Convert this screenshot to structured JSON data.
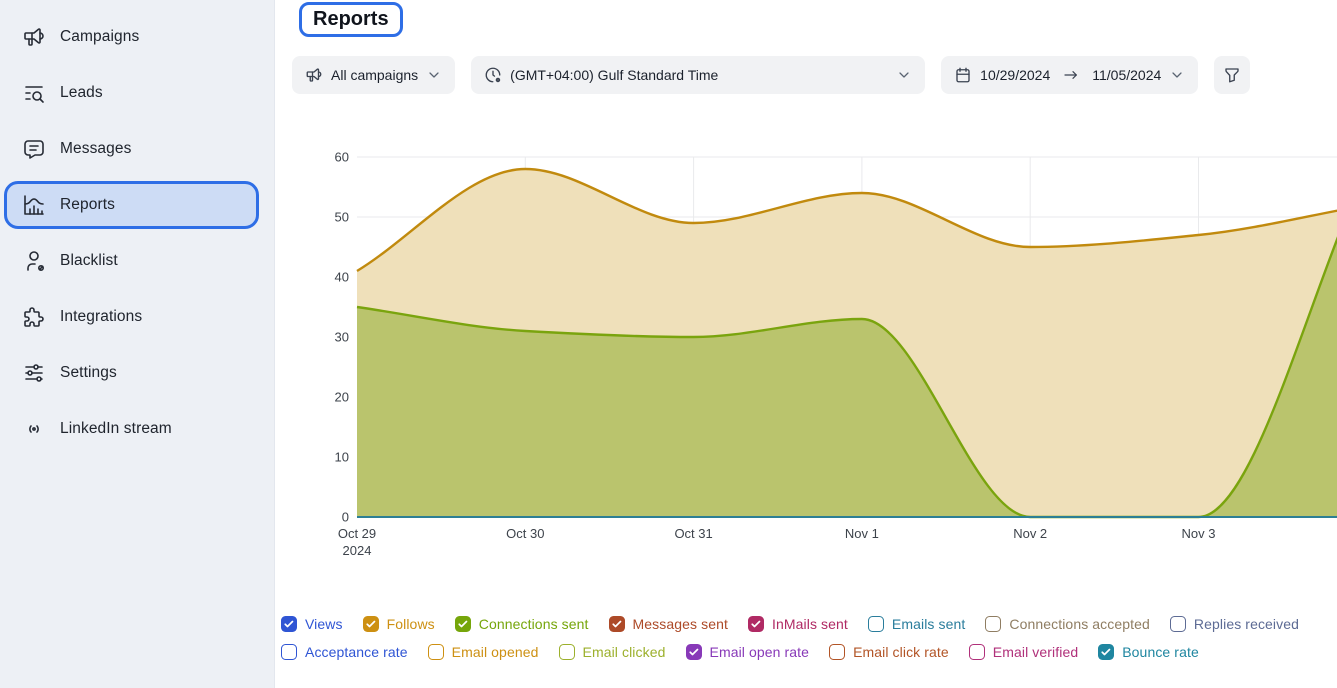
{
  "header": {
    "title": "Reports"
  },
  "sidebar": {
    "selected_color": "#2e6ee6",
    "items": [
      {
        "label": "Campaigns",
        "icon": "megaphone-icon",
        "selected": false
      },
      {
        "label": "Leads",
        "icon": "list-search-icon",
        "selected": false
      },
      {
        "label": "Messages",
        "icon": "message-icon",
        "selected": false
      },
      {
        "label": "Reports",
        "icon": "chart-histogram-icon",
        "selected": true
      },
      {
        "label": "Blacklist",
        "icon": "user-block-icon",
        "selected": false
      },
      {
        "label": "Integrations",
        "icon": "puzzle-icon",
        "selected": false
      },
      {
        "label": "Settings",
        "icon": "adjustments-icon",
        "selected": false
      },
      {
        "label": "LinkedIn stream",
        "icon": "broadcast-icon",
        "selected": false
      }
    ]
  },
  "filters": {
    "campaigns": {
      "value": "All campaigns",
      "icon": "megaphone-icon"
    },
    "timezone": {
      "value": "(GMT+04:00) Gulf Standard Time",
      "icon": "clock-cog-icon"
    },
    "date_range": {
      "start": "10/29/2024",
      "end": "11/05/2024",
      "icon": "calendar-icon"
    },
    "filter_button": {
      "icon": "funnel-icon"
    }
  },
  "chart_data": {
    "type": "area",
    "x_tick_labels": [
      "Oct 29",
      "Oct 30",
      "Oct 31",
      "Nov 1",
      "Nov 2",
      "Nov 3"
    ],
    "x_first_tick_sublabel": "2024",
    "ylim": [
      0,
      60
    ],
    "yticks": [
      0,
      10,
      20,
      30,
      40,
      50,
      60
    ],
    "grid": true,
    "legend_position": "bottom",
    "series": [
      {
        "name": "Follows",
        "stroke": "#c18a0e",
        "fill": "#efe0ba",
        "values": [
          41,
          58,
          49,
          54,
          45,
          47,
          52
        ]
      },
      {
        "name": "Connections sent",
        "stroke": "#7aa40e",
        "fill": "#bac46d",
        "values": [
          35,
          31,
          30,
          33,
          0,
          0,
          58
        ]
      },
      {
        "name": "Zero-value checked series (Views, Messages sent, InMails sent, Email open rate, Bounce rate)",
        "stroke": "#2d7f94",
        "fill": "none",
        "values": [
          0,
          0,
          0,
          0,
          0,
          0,
          0
        ]
      }
    ]
  },
  "legend": {
    "rows": [
      [
        {
          "label": "Views",
          "color": "#2f55d4",
          "checked": true
        },
        {
          "label": "Follows",
          "color": "#cd9012",
          "checked": true
        },
        {
          "label": "Connections sent",
          "color": "#76a60b",
          "checked": true
        },
        {
          "label": "Messages sent",
          "color": "#ad4a28",
          "checked": true
        },
        {
          "label": "InMails sent",
          "color": "#b02a64",
          "checked": true
        },
        {
          "label": "Emails sent",
          "color": "#2a7d9c",
          "checked": false
        },
        {
          "label": "Connections accepted",
          "color": "#8f7d62",
          "checked": false
        },
        {
          "label": "Replies received",
          "color": "#5d6b94",
          "checked": false
        }
      ],
      [
        {
          "label": "Acceptance rate",
          "color": "#2f55d4",
          "checked": false
        },
        {
          "label": "Email opened",
          "color": "#cd9012",
          "checked": false
        },
        {
          "label": "Email clicked",
          "color": "#9cb02c",
          "checked": false
        },
        {
          "label": "Email open rate",
          "color": "#8839b8",
          "checked": true
        },
        {
          "label": "Email click rate",
          "color": "#b25426",
          "checked": false
        },
        {
          "label": "Email verified",
          "color": "#b0307a",
          "checked": false
        },
        {
          "label": "Bounce rate",
          "color": "#1f86a0",
          "checked": true
        }
      ]
    ]
  }
}
